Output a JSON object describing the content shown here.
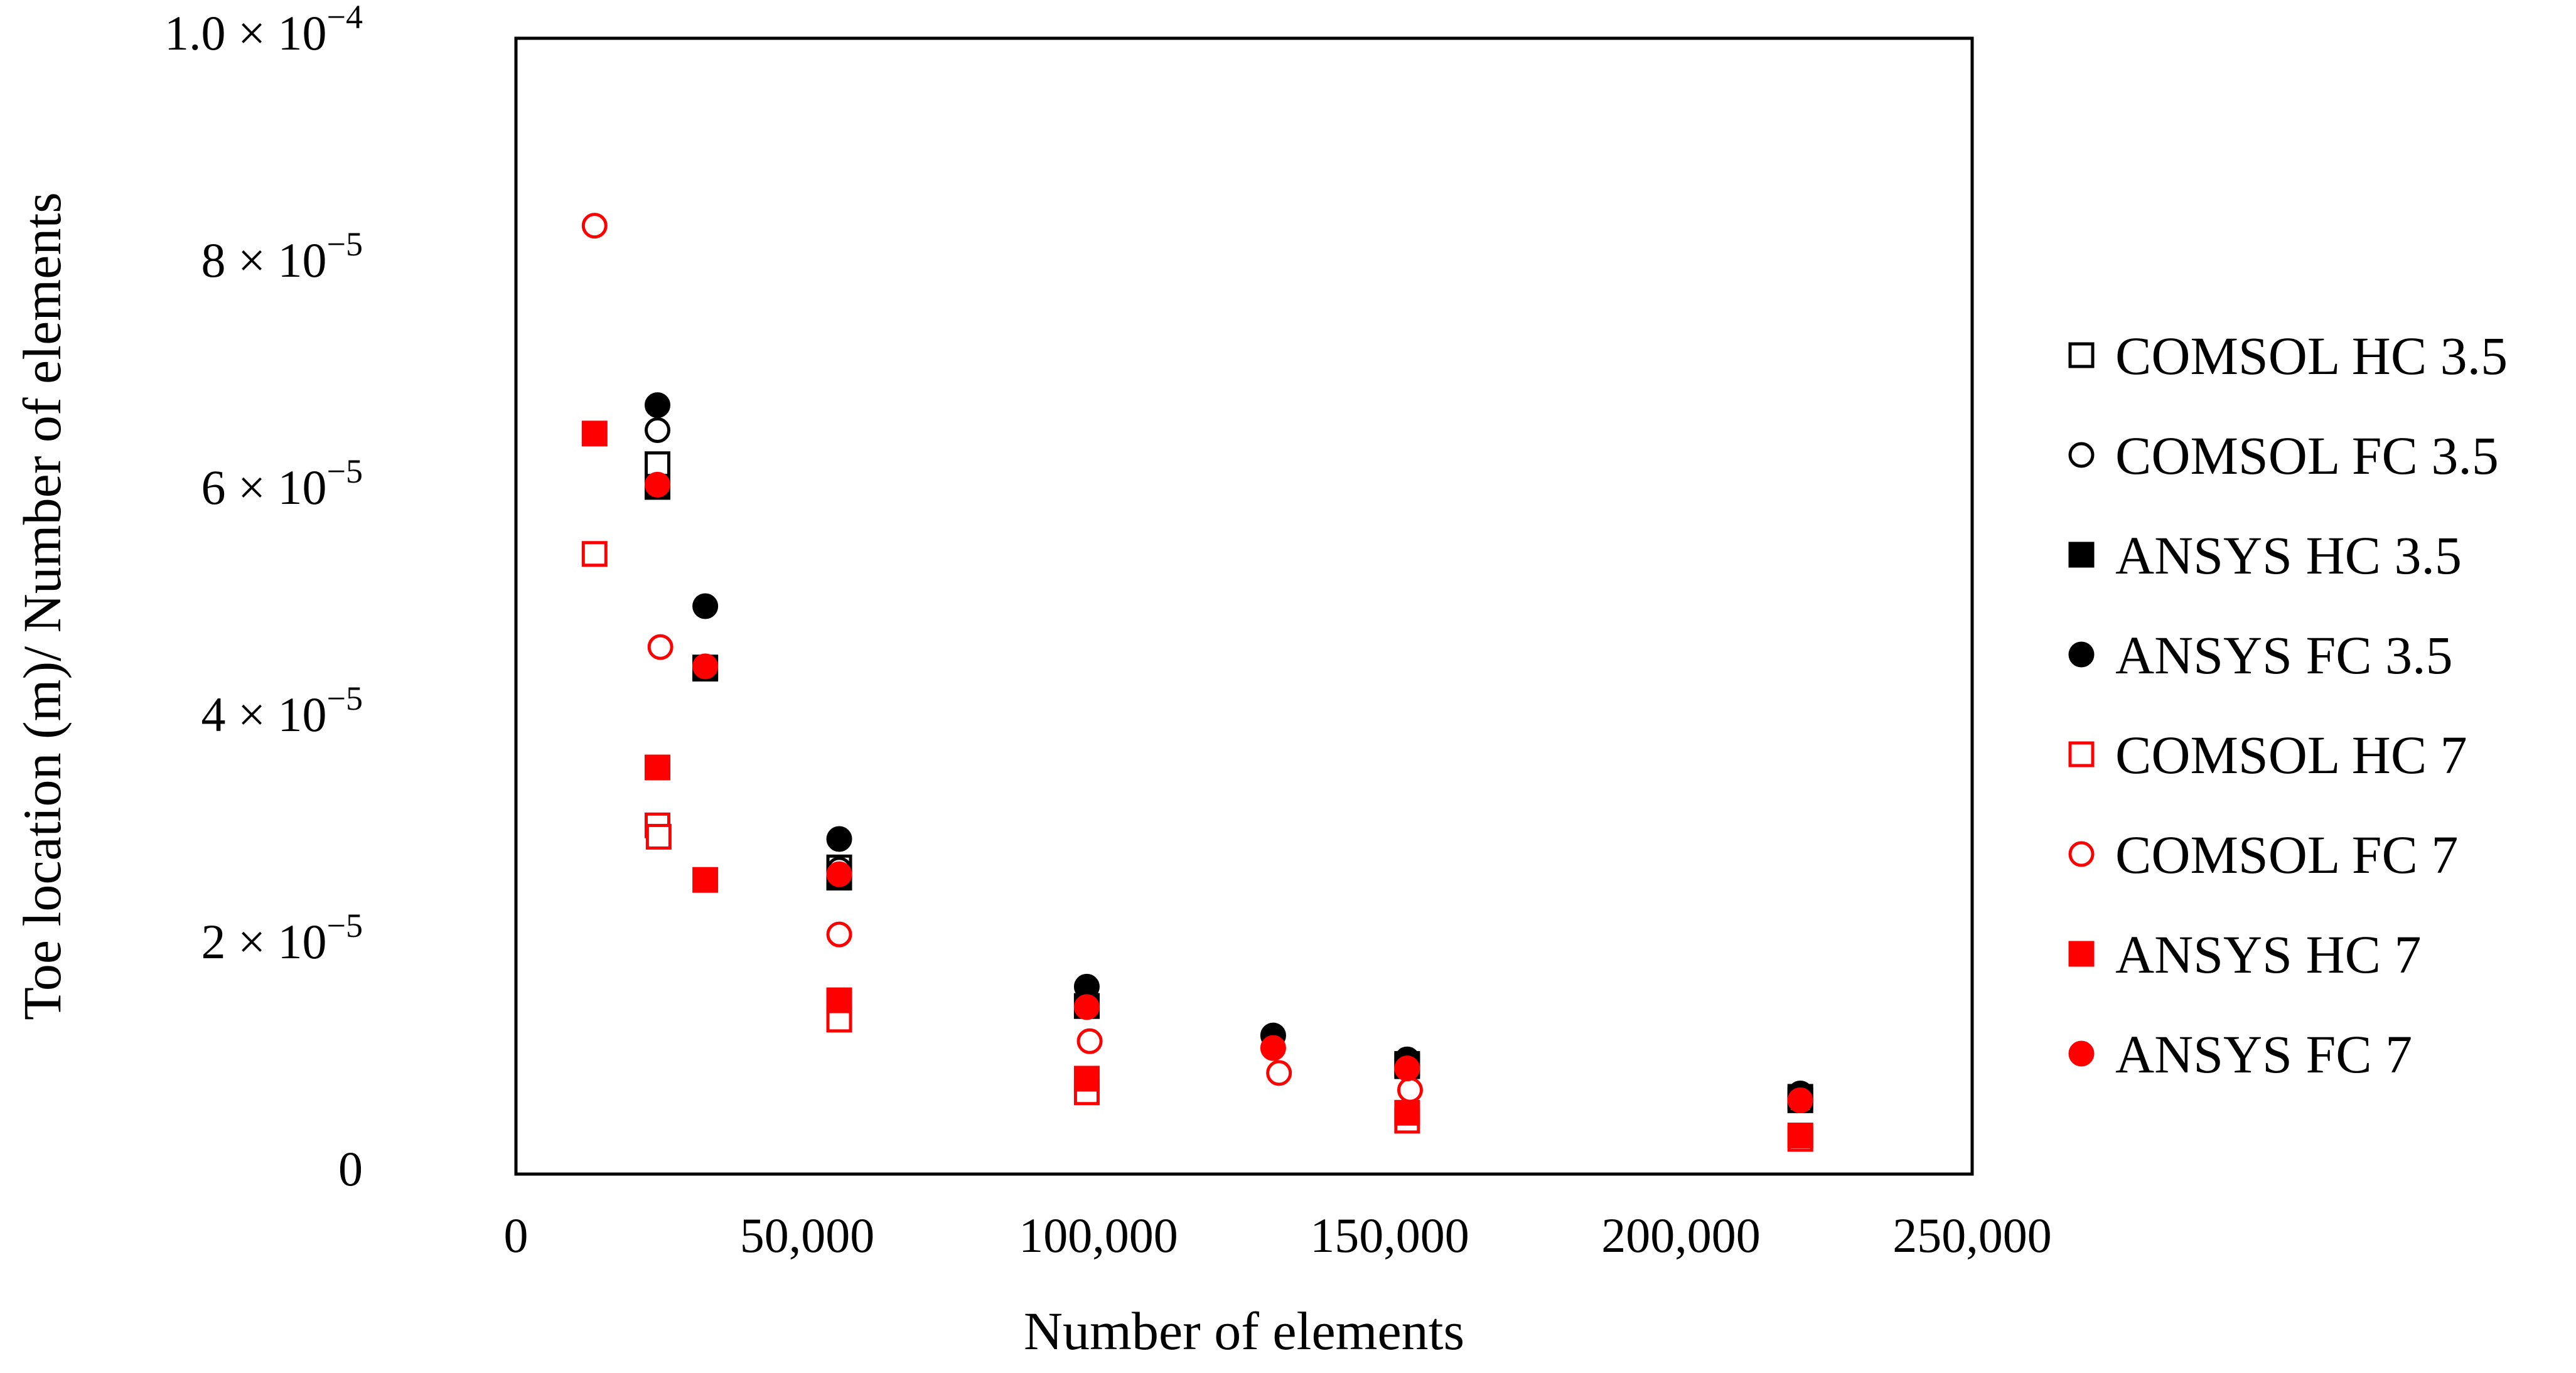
{
  "chart_data": {
    "type": "scatter",
    "title": "",
    "xlabel": "Number of elements",
    "ylabel": "Toe location (m)/ Number of elements",
    "xlim": [
      0,
      250000
    ],
    "ylim": [
      0,
      0.0001
    ],
    "x_ticks": [
      {
        "value": 0,
        "label": "0"
      },
      {
        "value": 50000,
        "label": "50,000"
      },
      {
        "value": 100000,
        "label": "100,000"
      },
      {
        "value": 150000,
        "label": "150,000"
      },
      {
        "value": 200000,
        "label": "200,000"
      },
      {
        "value": 250000,
        "label": "250,000"
      }
    ],
    "y_ticks": [
      {
        "value": 0,
        "label": "0",
        "sup": ""
      },
      {
        "value": 2e-05,
        "label": "2 × 10",
        "sup": "−5"
      },
      {
        "value": 4e-05,
        "label": "4 × 10",
        "sup": "−5"
      },
      {
        "value": 6e-05,
        "label": "6 × 10",
        "sup": "−5"
      },
      {
        "value": 8e-05,
        "label": "8 × 10",
        "sup": "−5"
      },
      {
        "value": 0.0001,
        "label": "1.0 × 10",
        "sup": "−4"
      }
    ],
    "grid": false,
    "legend_position": "right",
    "series": [
      {
        "name": "COMSOL HC 3.5",
        "marker": "square",
        "filled": false,
        "color": "#000000",
        "points": [
          [
            24300,
            6.25e-05
          ],
          [
            32500,
            4.46e-05
          ],
          [
            55500,
            2.7e-05
          ],
          [
            98000,
            1.48e-05
          ],
          [
            153000,
            9.5e-06
          ],
          [
            220500,
            6.5e-06
          ]
        ]
      },
      {
        "name": "COMSOL FC 3.5",
        "marker": "circle",
        "filled": false,
        "color": "#000000",
        "points": [
          [
            24300,
            6.55e-05
          ],
          [
            55500,
            2.68e-05
          ],
          [
            98000,
            1.52e-05
          ],
          [
            153000,
            9.5e-06
          ],
          [
            220500,
            6.8e-06
          ]
        ]
      },
      {
        "name": "ANSYS HC 3.5",
        "marker": "square",
        "filled": true,
        "color": "#000000",
        "points": [
          [
            24300,
            6.05e-05
          ],
          [
            32500,
            4.45e-05
          ],
          [
            55500,
            2.61e-05
          ],
          [
            98000,
            1.48e-05
          ],
          [
            153000,
            9.7e-06
          ],
          [
            220500,
            6.8e-06
          ]
        ]
      },
      {
        "name": "ANSYS FC 3.5",
        "marker": "circle",
        "filled": true,
        "color": "#000000",
        "points": [
          [
            24300,
            6.77e-05
          ],
          [
            32500,
            5e-05
          ],
          [
            55500,
            2.95e-05
          ],
          [
            98000,
            1.65e-05
          ],
          [
            130000,
            1.22e-05
          ],
          [
            153000,
            1.01e-05
          ],
          [
            220500,
            7.1e-06
          ]
        ]
      },
      {
        "name": "COMSOL HC 7",
        "marker": "square",
        "filled": false,
        "color": "#ff0000",
        "points": [
          [
            13500,
            5.46e-05
          ],
          [
            24300,
            3.07e-05
          ],
          [
            24500,
            2.97e-05
          ],
          [
            55500,
            1.36e-05
          ],
          [
            98000,
            7.2e-06
          ],
          [
            153000,
            4.7e-06
          ],
          [
            220500,
            3.1e-06
          ]
        ]
      },
      {
        "name": "COMSOL FC 7",
        "marker": "circle",
        "filled": false,
        "color": "#ff0000",
        "points": [
          [
            13500,
            8.35e-05
          ],
          [
            24800,
            4.64e-05
          ],
          [
            55500,
            2.11e-05
          ],
          [
            98500,
            1.17e-05
          ],
          [
            131000,
            8.9e-06
          ],
          [
            153500,
            7.4e-06
          ]
        ]
      },
      {
        "name": "ANSYS HC 7",
        "marker": "square",
        "filled": true,
        "color": "#ff0000",
        "points": [
          [
            13500,
            6.52e-05
          ],
          [
            24300,
            3.58e-05
          ],
          [
            32500,
            2.59e-05
          ],
          [
            55500,
            1.53e-05
          ],
          [
            98000,
            8.4e-06
          ],
          [
            153000,
            5.4e-06
          ],
          [
            220500,
            3.4e-06
          ]
        ]
      },
      {
        "name": "ANSYS FC 7",
        "marker": "circle",
        "filled": true,
        "color": "#ff0000",
        "points": [
          [
            24300,
            6.07e-05
          ],
          [
            32500,
            4.47e-05
          ],
          [
            55500,
            2.64e-05
          ],
          [
            98000,
            1.47e-05
          ],
          [
            130000,
            1.11e-05
          ],
          [
            153000,
            9.3e-06
          ],
          [
            220500,
            6.5e-06
          ]
        ]
      }
    ]
  }
}
